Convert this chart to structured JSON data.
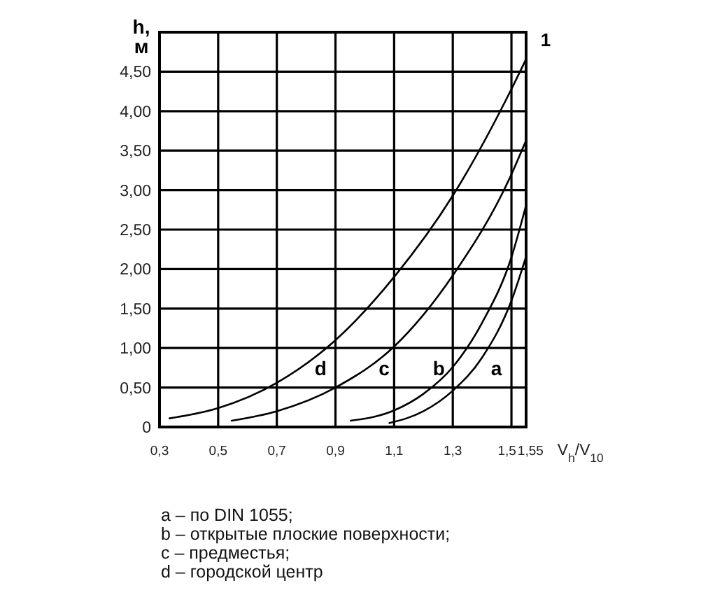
{
  "chart_data": {
    "type": "line",
    "ylabel": "h, м",
    "xlabel": "V$_{h}$/V$_{10}$",
    "xlim": [
      0.3,
      1.55
    ],
    "ylim": [
      0,
      5
    ],
    "xticks": [
      {
        "value": 0.3,
        "label": "0,3"
      },
      {
        "value": 0.5,
        "label": "0,5"
      },
      {
        "value": 0.7,
        "label": "0,7"
      },
      {
        "value": 0.9,
        "label": "0,9"
      },
      {
        "value": 1.1,
        "label": "1,1"
      },
      {
        "value": 1.3,
        "label": "1,3"
      },
      {
        "value": 1.5,
        "label": "1,5"
      },
      {
        "value": 1.55,
        "label": "1,55"
      }
    ],
    "yticks": [
      0,
      {
        "value": 0.5,
        "label": "0,50"
      },
      {
        "value": 1,
        "label": "1,00"
      },
      {
        "value": 1.5,
        "label": "1,50"
      },
      {
        "value": 2,
        "label": "2,00"
      },
      {
        "value": 2.5,
        "label": "2,50"
      },
      {
        "value": 3,
        "label": "3,00"
      },
      {
        "value": 3.5,
        "label": "3,50"
      },
      {
        "value": 4,
        "label": "4,00"
      },
      {
        "value": 4.5,
        "label": "4,50"
      }
    ],
    "grid": true,
    "series": [
      {
        "name": "a",
        "color": "#000000",
        "x": [
          1.084,
          1.2,
          1.3,
          1.4,
          1.5,
          1.55
        ],
        "values": [
          0.05,
          0.2,
          0.46,
          0.88,
          1.6,
          2.16
        ]
      },
      {
        "name": "b",
        "color": "#000000",
        "x": [
          0.952,
          1.1,
          1.2,
          1.3,
          1.4,
          1.5,
          1.55
        ],
        "values": [
          0.08,
          0.21,
          0.42,
          0.76,
          1.32,
          2.15,
          2.81
        ]
      },
      {
        "name": "c",
        "color": "#000000",
        "x": [
          0.546,
          0.7,
          0.9,
          1.1,
          1.3,
          1.5,
          1.55
        ],
        "values": [
          0.08,
          0.2,
          0.5,
          1.02,
          1.92,
          3.2,
          3.63
        ]
      },
      {
        "name": "d",
        "color": "#000000",
        "x": [
          0.334,
          0.5,
          0.7,
          0.9,
          1.1,
          1.3,
          1.5,
          1.55
        ],
        "values": [
          0.11,
          0.24,
          0.56,
          1.1,
          1.9,
          2.93,
          4.28,
          4.66
        ]
      }
    ],
    "annotations": [
      "1",
      "a – по DIN 1055;",
      "b – открытые плоские поверхности;",
      "c – предместья;",
      "d – городской центр"
    ]
  }
}
